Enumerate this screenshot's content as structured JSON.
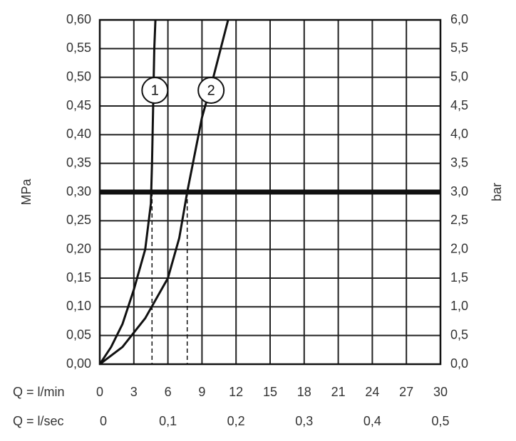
{
  "chart_data": {
    "type": "line",
    "xlabel": "Q = l/min",
    "x2label": "Q = l/sec",
    "ylabel": "MPa",
    "y2label": "bar",
    "xlim": [
      0,
      30
    ],
    "xticks": [
      0,
      3,
      6,
      9,
      12,
      15,
      18,
      21,
      24,
      27,
      30
    ],
    "x2lim": [
      0,
      0.5
    ],
    "x2ticks": [
      0,
      {
        "value": 0.1,
        "label": "0,1"
      },
      {
        "value": 0.2,
        "label": "0,2"
      },
      {
        "value": 0.3,
        "label": "0,3"
      },
      {
        "value": 0.4,
        "label": "0,4"
      },
      {
        "value": 0.5,
        "label": "0,5"
      }
    ],
    "ylim": [
      0,
      0.6
    ],
    "yticks": [
      {
        "value": 0,
        "label": "0,00"
      },
      {
        "value": 0.05,
        "label": "0,05"
      },
      {
        "value": 0.1,
        "label": "0,10"
      },
      {
        "value": 0.15,
        "label": "0,15"
      },
      {
        "value": 0.2,
        "label": "0,20"
      },
      {
        "value": 0.25,
        "label": "0,25"
      },
      {
        "value": 0.3,
        "label": "0,30"
      },
      {
        "value": 0.35,
        "label": "0,35"
      },
      {
        "value": 0.4,
        "label": "0,40"
      },
      {
        "value": 0.45,
        "label": "0,45"
      },
      {
        "value": 0.5,
        "label": "0,50"
      },
      {
        "value": 0.55,
        "label": "0,55"
      },
      {
        "value": 0.6,
        "label": "0,60"
      }
    ],
    "y2lim": [
      0,
      6
    ],
    "y2ticks": [
      {
        "value": 0,
        "label": "0,0"
      },
      {
        "value": 0.5,
        "label": "0,5"
      },
      {
        "value": 1,
        "label": "1,0"
      },
      {
        "value": 1.5,
        "label": "1,5"
      },
      {
        "value": 2,
        "label": "2,0"
      },
      {
        "value": 2.5,
        "label": "2,5"
      },
      {
        "value": 3,
        "label": "3,0"
      },
      {
        "value": 3.5,
        "label": "3,5"
      },
      {
        "value": 4,
        "label": "4,0"
      },
      {
        "value": 4.5,
        "label": "4,5"
      },
      {
        "value": 5,
        "label": "5,0"
      },
      {
        "value": 5.5,
        "label": "5,5"
      },
      {
        "value": 6,
        "label": "6,0"
      }
    ],
    "grid": true,
    "highlight_y": 0.3,
    "drop_lines": [
      4.6,
      7.7
    ],
    "series": [
      {
        "name": "1",
        "color": "#111111",
        "x": [
          0,
          1,
          2,
          3,
          4,
          4.5,
          4.6,
          4.7,
          4.8,
          4.9
        ],
        "values": [
          0,
          0.03,
          0.07,
          0.13,
          0.2,
          0.28,
          0.35,
          0.45,
          0.55,
          0.6
        ]
      },
      {
        "name": "2",
        "color": "#111111",
        "x": [
          0,
          2,
          4,
          6,
          7,
          7.7,
          9,
          10,
          11.3
        ],
        "values": [
          0,
          0.03,
          0.08,
          0.15,
          0.22,
          0.3,
          0.43,
          0.5,
          0.6
        ]
      }
    ]
  }
}
